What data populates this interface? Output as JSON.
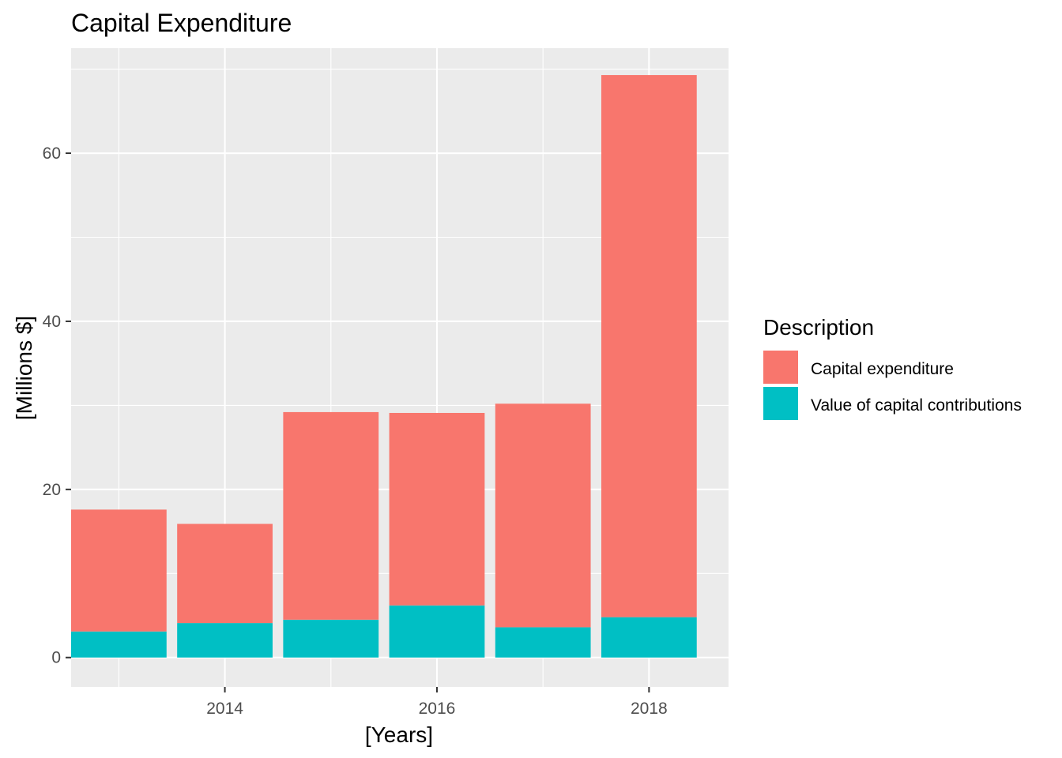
{
  "chart_data": {
    "type": "bar",
    "stacked": true,
    "title": "Capital Expenditure",
    "xlabel": "[Years]",
    "ylabel": "[Millions $]",
    "x": [
      2013,
      2014,
      2015,
      2016,
      2017,
      2018
    ],
    "x_ticks": [
      "2014",
      "2016",
      "2018"
    ],
    "xlim": [
      2012.55,
      2018.75
    ],
    "ylim": [
      -3.5,
      72.5
    ],
    "y_ticks": [
      "0",
      "20",
      "40",
      "60"
    ],
    "grid": true,
    "legend": {
      "title": "Description",
      "placement": "right"
    },
    "series": [
      {
        "name": "Capital expenditure",
        "color": "#F8766D",
        "values": [
          14.5,
          11.8,
          24.7,
          22.9,
          26.6,
          64.5
        ]
      },
      {
        "name": "Value of capital contributions",
        "color": "#00BFC4",
        "values": [
          3.1,
          4.1,
          4.5,
          6.2,
          3.6,
          4.8
        ]
      }
    ]
  }
}
